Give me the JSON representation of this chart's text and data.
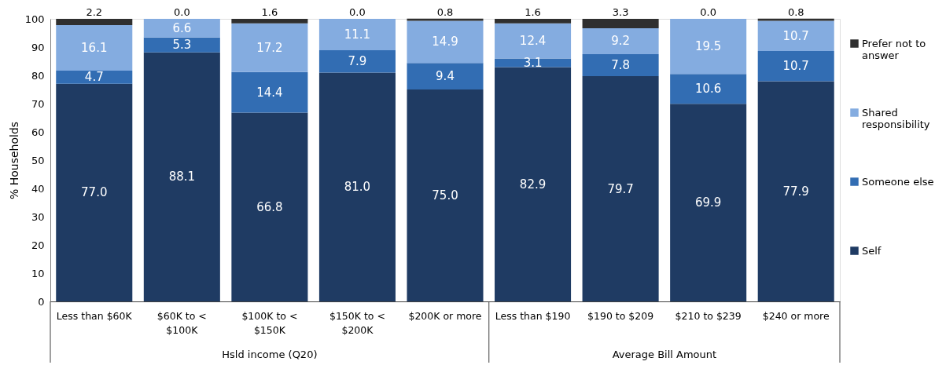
{
  "chart_data": {
    "type": "bar",
    "stacked": true,
    "ylabel": "% Households",
    "categories": [
      "Less than $60K",
      "$60K to < $100K",
      "$100K to < $150K",
      "$150K to < $200K",
      "$200K or more",
      "Less than $190",
      "$190 to $209",
      "$210 to $239",
      "$240 or more"
    ],
    "ylim": [
      0,
      100
    ],
    "yticks": [
      0,
      10,
      20,
      30,
      40,
      50,
      60,
      70,
      80,
      90,
      100
    ],
    "grid": false,
    "legend": "right",
    "annotations": [
      "Hsld income (Q20)",
      "Average Bill Amount"
    ],
    "series": [
      {
        "name": "Self",
        "color": "#1f3b63",
        "values": [
          77.0,
          88.1,
          66.8,
          81.0,
          75.0,
          82.9,
          79.7,
          69.9,
          77.9
        ],
        "value_labels": [
          "77.0",
          "88.1",
          "66.8",
          "81.0",
          "75.0",
          "82.9",
          "79.7",
          "69.9",
          "77.9"
        ]
      },
      {
        "name": "Someone else",
        "color": "#326db3",
        "values": [
          4.7,
          5.3,
          14.4,
          7.9,
          9.4,
          3.1,
          7.8,
          10.6,
          10.7
        ],
        "value_labels": [
          "4.7",
          "5.3",
          "14.4",
          "7.9",
          "9.4",
          "3.1",
          "7.8",
          "10.6",
          "10.7"
        ]
      },
      {
        "name": "Shared responsibility",
        "color": "#84ace0",
        "values": [
          16.1,
          6.6,
          17.2,
          11.1,
          14.9,
          12.4,
          9.2,
          19.5,
          10.7
        ],
        "value_labels": [
          "16.1",
          "6.6",
          "17.2",
          "11.1",
          "14.9",
          "12.4",
          "9.2",
          "19.5",
          "10.7"
        ]
      },
      {
        "name": "Prefer not to answer",
        "color": "#2f2f2f",
        "values": [
          2.2,
          0.0,
          1.6,
          0.0,
          0.8,
          1.6,
          3.3,
          0.0,
          0.8
        ],
        "value_labels": [
          "2.2",
          "0.0",
          "1.6",
          "0.0",
          "0.8",
          "1.6",
          "3.3",
          "0.0",
          "0.8"
        ]
      }
    ]
  }
}
